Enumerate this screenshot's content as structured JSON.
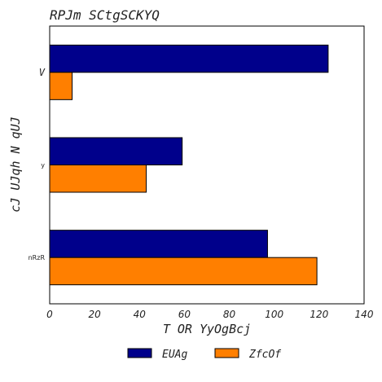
{
  "chart_data": {
    "type": "bar",
    "orientation": "horizontal",
    "title": "RPJm SCtgSCKYQ",
    "xlabel": "T OR YyOgBcj",
    "ylabel": "cJ UJqh N qUJ",
    "categories": [
      "V",
      "y",
      "nRzR"
    ],
    "series": [
      {
        "name": "EUAg",
        "values": [
          124,
          59,
          97
        ],
        "color": "#00008b"
      },
      {
        "name": "ZfcOf",
        "values": [
          10,
          43,
          119
        ],
        "color": "#ff7f00"
      }
    ],
    "xlim": [
      0,
      140
    ],
    "xticks": [
      "0",
      "20",
      "40",
      "60",
      "80",
      "100",
      "120",
      "140"
    ],
    "grid": false,
    "legend_position": "bottom-center"
  }
}
